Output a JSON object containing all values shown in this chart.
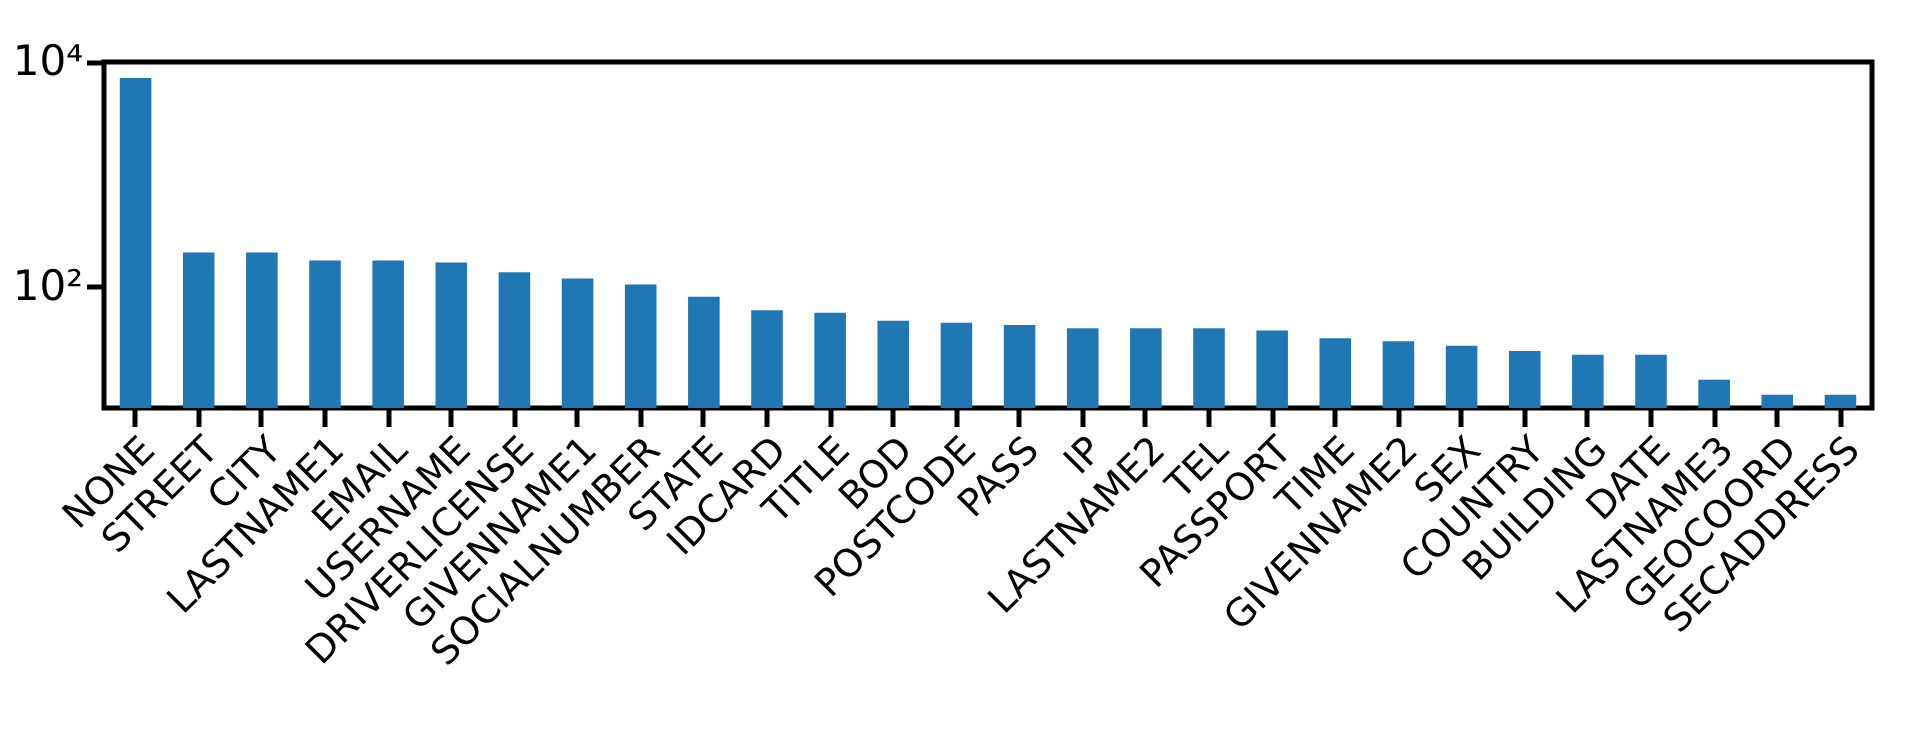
{
  "chart_data": {
    "type": "bar",
    "categories": [
      "NONE",
      "STREET",
      "CITY",
      "LASTNAME1",
      "EMAIL",
      "USERNAME",
      "DRIVERLICENSE",
      "GIVENNAME1",
      "SOCIALNUMBER",
      "STATE",
      "IDCARD",
      "TITLE",
      "BOD",
      "POSTCODE",
      "PASS",
      "IP",
      "LASTNAME2",
      "TEL",
      "PASSPORT",
      "TIME",
      "GIVENNAME2",
      "SEX",
      "COUNTRY",
      "BUILDING",
      "DATE",
      "LASTNAME3",
      "GEOCOORD",
      "SECADDRESS"
    ],
    "values": [
      7200,
      203,
      203,
      172,
      172,
      165,
      135,
      119,
      105,
      82,
      62,
      59,
      50,
      48,
      46,
      43,
      43,
      43,
      41,
      35,
      33,
      30,
      27,
      25,
      25,
      15,
      11,
      11
    ],
    "color": "#1f77b4",
    "log": true,
    "ylim": [
      8.4,
      10000
    ],
    "yticks": [
      {
        "value": 100,
        "label": "10²"
      },
      {
        "value": 10000,
        "label": "10⁴"
      }
    ],
    "grid": false
  }
}
